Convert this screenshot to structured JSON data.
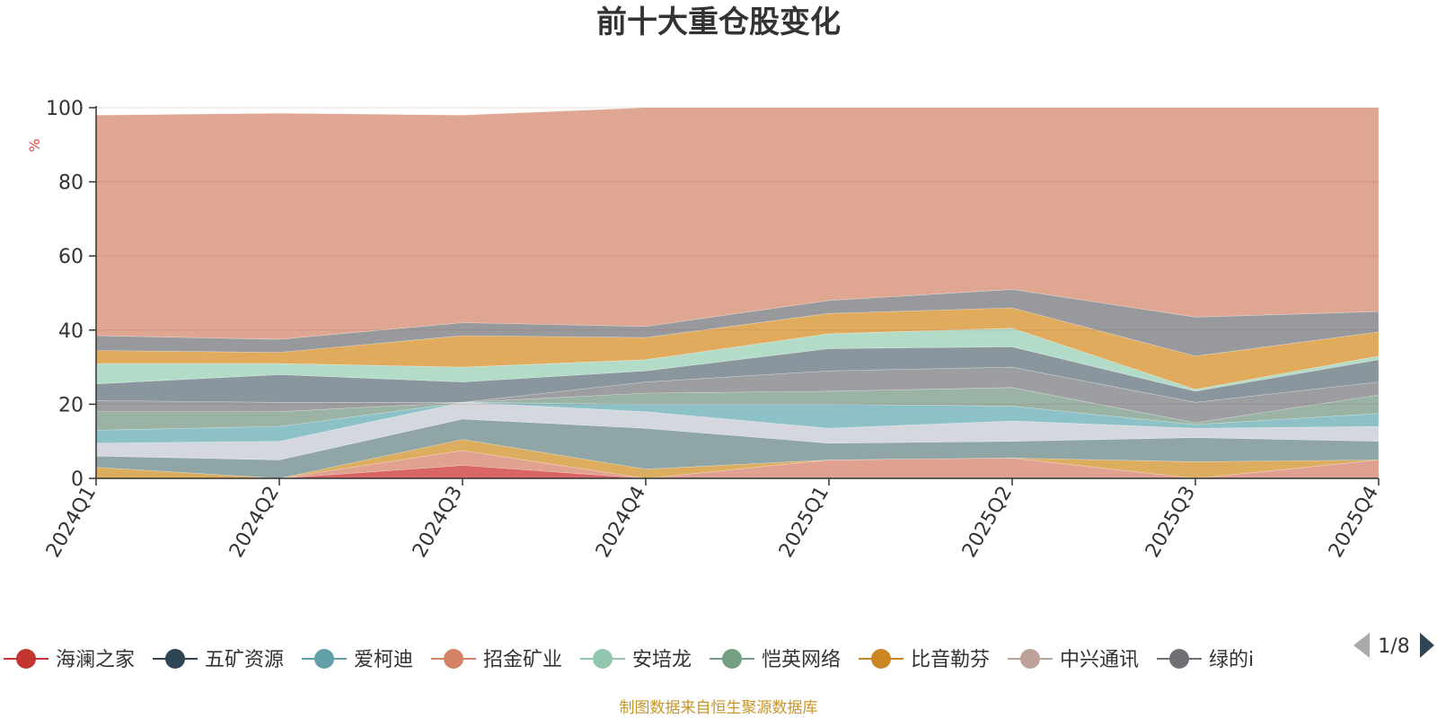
{
  "chart_data": {
    "type": "area",
    "title": "前十大重仓股变化",
    "ylabel": "%",
    "ylim": [
      0,
      100
    ],
    "yticks": [
      "0",
      "20",
      "40",
      "60",
      "80",
      "100"
    ],
    "categories": [
      "2024Q1",
      "2024Q2",
      "2024Q3",
      "2024Q4",
      "2025Q1",
      "2025Q2",
      "2025Q3",
      "2025Q4"
    ],
    "grid": true,
    "stack_bounds": [
      [
        0,
        0,
        0,
        0,
        0,
        0,
        0,
        0
      ],
      [
        0,
        0,
        3.5,
        0,
        0,
        0,
        0,
        0
      ],
      [
        0,
        0,
        7.5,
        0,
        5,
        5.5,
        0,
        5
      ],
      [
        3,
        0,
        10.5,
        2.5,
        5,
        5.5,
        4.5,
        5
      ],
      [
        6,
        5,
        16,
        13.5,
        9.5,
        10,
        11,
        10
      ],
      [
        9.5,
        10,
        20.5,
        18,
        13.5,
        15.5,
        13.5,
        14
      ],
      [
        13,
        14,
        20.5,
        20,
        20,
        19.5,
        14.5,
        17.5
      ],
      [
        18,
        18,
        20.5,
        23,
        23.5,
        24.5,
        15,
        22.5
      ],
      [
        21,
        20.5,
        20.5,
        26,
        29,
        30,
        20.5,
        26
      ],
      [
        25.5,
        28,
        26,
        29,
        35,
        35.5,
        23.5,
        32
      ],
      [
        31,
        31,
        30,
        32,
        39,
        40.5,
        24,
        33
      ],
      [
        34.5,
        34,
        38.5,
        38,
        44.5,
        46,
        33,
        39.5
      ],
      [
        38.5,
        37.5,
        42,
        41,
        48,
        51,
        43.5,
        45
      ],
      [
        98,
        98.5,
        98,
        100,
        100,
        100,
        100,
        100
      ]
    ],
    "layer_colors": [
      "#d96565",
      "#e0a190",
      "#dcad5e",
      "#8fa5a6",
      "#d4d8de",
      "#8cc1c8",
      "#9bb3a4",
      "#9d9ea2",
      "#8a969d",
      "#b3dcc8",
      "#e1ab5e",
      "#98999d",
      "#df7e70"
    ],
    "top_color": "#dfa792",
    "legend": {
      "items": [
        {
          "name": "海澜之家",
          "color": "#c23531"
        },
        {
          "name": "五矿资源",
          "color": "#2f4554"
        },
        {
          "name": "爱柯迪",
          "color": "#61a0a8"
        },
        {
          "name": "招金矿业",
          "color": "#d48265"
        },
        {
          "name": "安培龙",
          "color": "#91c7ae"
        },
        {
          "name": "恺英网络",
          "color": "#749f83"
        },
        {
          "name": "比音勒芬",
          "color": "#ca8622"
        },
        {
          "name": "中兴通讯",
          "color": "#bda29a"
        },
        {
          "name": "绿的i",
          "color": "#6e7074"
        }
      ],
      "page": "1/8"
    }
  },
  "footer": {
    "source": "制图数据来自恒生聚源数据库"
  }
}
